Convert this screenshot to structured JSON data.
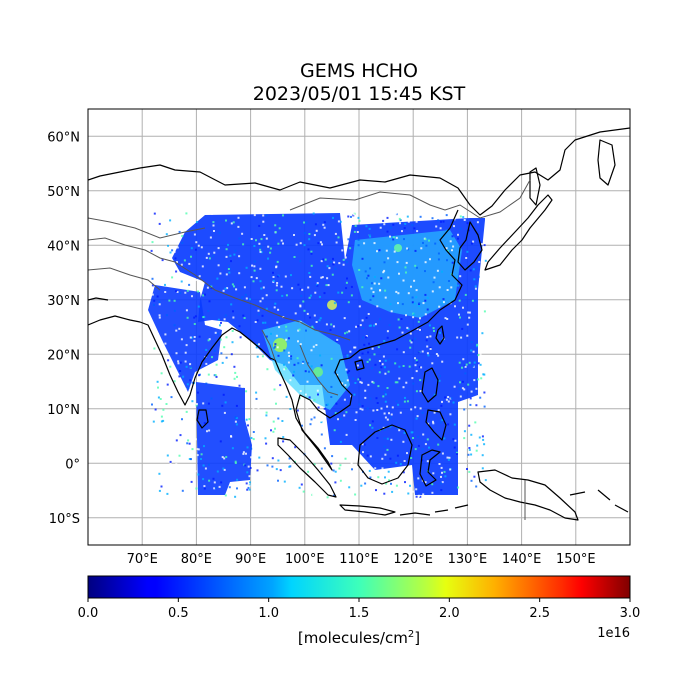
{
  "title": "GEMS HCHO",
  "subtitle": "2023/05/01 15:45 KST",
  "map": {
    "lon_range": [
      60,
      160
    ],
    "lat_range": [
      -15,
      65
    ],
    "lon_ticks": [
      "70°E",
      "80°E",
      "90°E",
      "100°E",
      "110°E",
      "120°E",
      "130°E",
      "140°E",
      "150°E"
    ],
    "lat_ticks": [
      "60°N",
      "50°N",
      "40°N",
      "30°N",
      "20°N",
      "10°N",
      "0°",
      "10°S"
    ],
    "gridlines": true,
    "coastline_color": "#000000",
    "border_color": "#555555",
    "grid_color": "#b0b0b0"
  },
  "colorbar": {
    "colormap": "jet",
    "vmin": 0.0,
    "vmax": 3.0,
    "tick_labels": [
      "0.0",
      "0.5",
      "1.0",
      "1.5",
      "2.0",
      "2.5",
      "3.0"
    ],
    "scale_label": "1e16",
    "unit_label_main": "[molecules/cm",
    "unit_label_sup": "2",
    "unit_label_end": "]"
  }
}
